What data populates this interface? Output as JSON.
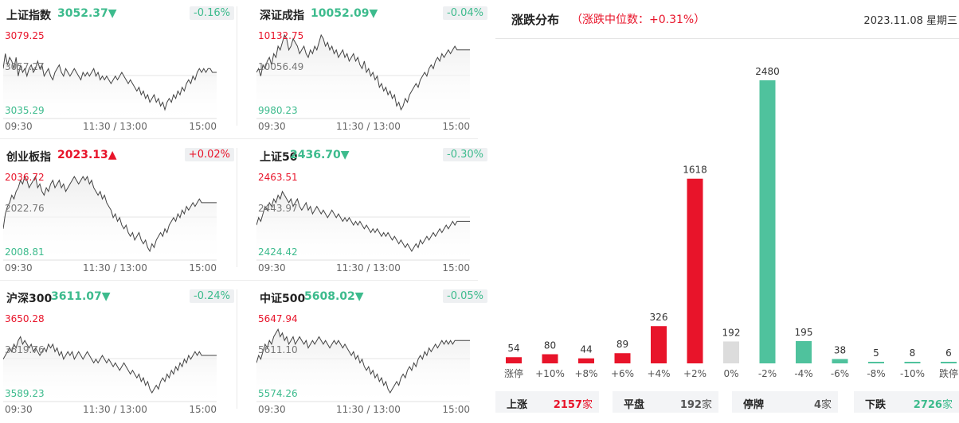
{
  "panels": [
    {
      "name": "上证指数",
      "value": "3052.37",
      "arrow": "▼",
      "dir": "down",
      "change": "-0.16%",
      "top": "3079.25",
      "mid": "3057.27",
      "bottom": "3035.29",
      "series": [
        0.45,
        0.25,
        0.4,
        0.3,
        0.35,
        0.45,
        0.3,
        0.55,
        0.4,
        0.5,
        0.45,
        0.55,
        0.45,
        0.4,
        0.5,
        0.45,
        0.35,
        0.45,
        0.4,
        0.55,
        0.5,
        0.45,
        0.55,
        0.6,
        0.5,
        0.45,
        0.4,
        0.5,
        0.55,
        0.45,
        0.5,
        0.55,
        0.5,
        0.45,
        0.5,
        0.55,
        0.6,
        0.5,
        0.55,
        0.5,
        0.55,
        0.5,
        0.45,
        0.55,
        0.5,
        0.6,
        0.55,
        0.6,
        0.55,
        0.6,
        0.65,
        0.6,
        0.55,
        0.6,
        0.55,
        0.5,
        0.55,
        0.6,
        0.65,
        0.6,
        0.65,
        0.7,
        0.75,
        0.7,
        0.8,
        0.75,
        0.85,
        0.8,
        0.9,
        0.85,
        0.8,
        0.9,
        0.85,
        0.95,
        0.9,
        1.0,
        0.9,
        0.85,
        0.9,
        0.8,
        0.85,
        0.75,
        0.8,
        0.7,
        0.75,
        0.65,
        0.6,
        0.65,
        0.55,
        0.6,
        0.5,
        0.45,
        0.5,
        0.45,
        0.5,
        0.45,
        0.45,
        0.5,
        0.5,
        0.5
      ]
    },
    {
      "name": "深证成指",
      "value": "10052.09",
      "arrow": "▼",
      "dir": "down",
      "change": "-0.04%",
      "top": "10132.75",
      "mid": "10056.49",
      "bottom": "9980.23",
      "series": [
        0.5,
        0.45,
        0.55,
        0.4,
        0.45,
        0.35,
        0.3,
        0.4,
        0.25,
        0.3,
        0.15,
        0.2,
        0.1,
        0.0,
        0.05,
        0.2,
        0.15,
        0.05,
        0.1,
        0.15,
        0.25,
        0.2,
        0.15,
        0.25,
        0.3,
        0.2,
        0.25,
        0.15,
        0.2,
        0.1,
        0.0,
        0.05,
        0.15,
        0.1,
        0.2,
        0.15,
        0.25,
        0.2,
        0.3,
        0.25,
        0.2,
        0.3,
        0.25,
        0.35,
        0.3,
        0.25,
        0.35,
        0.3,
        0.4,
        0.45,
        0.35,
        0.5,
        0.45,
        0.55,
        0.5,
        0.6,
        0.55,
        0.7,
        0.65,
        0.75,
        0.7,
        0.8,
        0.75,
        0.85,
        0.8,
        0.95,
        0.9,
        1.0,
        0.95,
        0.85,
        0.9,
        0.8,
        0.75,
        0.7,
        0.65,
        0.7,
        0.6,
        0.55,
        0.5,
        0.55,
        0.45,
        0.4,
        0.45,
        0.35,
        0.3,
        0.35,
        0.25,
        0.3,
        0.25,
        0.2,
        0.25,
        0.2,
        0.15,
        0.2,
        0.2,
        0.2,
        0.2,
        0.2,
        0.2,
        0.2
      ]
    },
    {
      "name": "创业板指",
      "value": "2023.13",
      "arrow": "▲",
      "dir": "up",
      "change": "+0.02%",
      "top": "2036.72",
      "mid": "2022.76",
      "bottom": "2008.81",
      "series": [
        0.7,
        0.5,
        0.4,
        0.35,
        0.25,
        0.3,
        0.2,
        0.15,
        0.05,
        0.1,
        0.0,
        0.05,
        0.15,
        0.1,
        0.05,
        0.0,
        0.15,
        0.1,
        0.2,
        0.25,
        0.15,
        0.2,
        0.1,
        0.05,
        0.15,
        0.1,
        0.05,
        0.15,
        0.1,
        0.2,
        0.15,
        0.1,
        0.05,
        0.0,
        0.05,
        0.1,
        0.05,
        0.0,
        0.05,
        0.0,
        0.1,
        0.05,
        0.15,
        0.2,
        0.25,
        0.2,
        0.3,
        0.25,
        0.35,
        0.4,
        0.45,
        0.55,
        0.5,
        0.6,
        0.55,
        0.65,
        0.7,
        0.65,
        0.75,
        0.8,
        0.75,
        0.85,
        0.8,
        0.75,
        0.85,
        0.9,
        0.85,
        0.95,
        1.0,
        0.9,
        0.95,
        0.85,
        0.8,
        0.75,
        0.8,
        0.7,
        0.75,
        0.65,
        0.6,
        0.55,
        0.6,
        0.5,
        0.55,
        0.45,
        0.5,
        0.4,
        0.45,
        0.4,
        0.35,
        0.4,
        0.35,
        0.3,
        0.35,
        0.35,
        0.35,
        0.35,
        0.35,
        0.35,
        0.35,
        0.35
      ]
    },
    {
      "name": "上证50",
      "value": "2436.70",
      "arrow": "▼",
      "dir": "down",
      "change": "-0.30%",
      "top": "2463.51",
      "mid": "2443.97",
      "bottom": "2424.42",
      "series": [
        0.65,
        0.55,
        0.6,
        0.5,
        0.4,
        0.45,
        0.35,
        0.4,
        0.3,
        0.35,
        0.25,
        0.3,
        0.2,
        0.25,
        0.3,
        0.35,
        0.3,
        0.4,
        0.35,
        0.3,
        0.4,
        0.45,
        0.4,
        0.35,
        0.45,
        0.4,
        0.5,
        0.45,
        0.4,
        0.45,
        0.5,
        0.45,
        0.5,
        0.55,
        0.5,
        0.45,
        0.5,
        0.55,
        0.5,
        0.55,
        0.6,
        0.55,
        0.6,
        0.55,
        0.6,
        0.65,
        0.6,
        0.65,
        0.6,
        0.65,
        0.7,
        0.65,
        0.7,
        0.75,
        0.7,
        0.75,
        0.7,
        0.75,
        0.8,
        0.75,
        0.8,
        0.75,
        0.8,
        0.85,
        0.8,
        0.85,
        0.9,
        0.85,
        0.9,
        0.95,
        0.9,
        0.95,
        1.0,
        0.95,
        0.9,
        0.95,
        0.85,
        0.9,
        0.85,
        0.8,
        0.85,
        0.8,
        0.75,
        0.8,
        0.75,
        0.7,
        0.75,
        0.7,
        0.65,
        0.7,
        0.65,
        0.6,
        0.65,
        0.6,
        0.6,
        0.6,
        0.6,
        0.6,
        0.6,
        0.6
      ]
    },
    {
      "name": "沪深300",
      "value": "3611.07",
      "arrow": "▼",
      "dir": "down",
      "change": "-0.24%",
      "top": "3650.28",
      "mid": "3619.76",
      "bottom": "3589.23",
      "series": [
        0.55,
        0.5,
        0.45,
        0.4,
        0.45,
        0.35,
        0.4,
        0.3,
        0.25,
        0.35,
        0.3,
        0.35,
        0.4,
        0.35,
        0.45,
        0.4,
        0.45,
        0.5,
        0.45,
        0.4,
        0.45,
        0.35,
        0.4,
        0.35,
        0.45,
        0.4,
        0.5,
        0.45,
        0.55,
        0.5,
        0.45,
        0.5,
        0.45,
        0.55,
        0.5,
        0.45,
        0.5,
        0.55,
        0.5,
        0.45,
        0.5,
        0.55,
        0.6,
        0.55,
        0.6,
        0.55,
        0.5,
        0.55,
        0.6,
        0.55,
        0.6,
        0.65,
        0.6,
        0.65,
        0.7,
        0.65,
        0.6,
        0.65,
        0.7,
        0.75,
        0.7,
        0.75,
        0.8,
        0.75,
        0.85,
        0.8,
        0.9,
        0.85,
        0.95,
        1.0,
        0.95,
        0.9,
        0.95,
        0.85,
        0.8,
        0.85,
        0.75,
        0.8,
        0.7,
        0.75,
        0.65,
        0.7,
        0.6,
        0.65,
        0.55,
        0.6,
        0.5,
        0.55,
        0.5,
        0.45,
        0.5,
        0.45,
        0.5,
        0.5,
        0.5,
        0.5,
        0.5,
        0.5,
        0.5,
        0.5
      ]
    },
    {
      "name": "中证500",
      "value": "5608.02",
      "arrow": "▼",
      "dir": "down",
      "change": "-0.05%",
      "top": "5647.94",
      "mid": "5611.10",
      "bottom": "5574.26",
      "series": [
        0.6,
        0.5,
        0.55,
        0.45,
        0.35,
        0.4,
        0.3,
        0.35,
        0.25,
        0.2,
        0.15,
        0.25,
        0.2,
        0.3,
        0.25,
        0.35,
        0.3,
        0.25,
        0.35,
        0.3,
        0.25,
        0.3,
        0.35,
        0.3,
        0.4,
        0.35,
        0.3,
        0.35,
        0.3,
        0.25,
        0.3,
        0.35,
        0.3,
        0.35,
        0.4,
        0.35,
        0.3,
        0.35,
        0.3,
        0.35,
        0.4,
        0.35,
        0.4,
        0.45,
        0.5,
        0.45,
        0.55,
        0.5,
        0.6,
        0.55,
        0.65,
        0.7,
        0.65,
        0.75,
        0.7,
        0.8,
        0.75,
        0.85,
        0.8,
        0.9,
        0.85,
        0.95,
        1.0,
        0.95,
        0.9,
        0.85,
        0.9,
        0.8,
        0.75,
        0.8,
        0.7,
        0.65,
        0.7,
        0.6,
        0.65,
        0.55,
        0.5,
        0.55,
        0.45,
        0.5,
        0.4,
        0.45,
        0.4,
        0.35,
        0.4,
        0.35,
        0.3,
        0.35,
        0.3,
        0.35,
        0.3,
        0.35,
        0.3,
        0.3,
        0.3,
        0.3,
        0.3,
        0.3,
        0.3,
        0.3
      ]
    }
  ],
  "time_labels": [
    "09:30",
    "11:30 / 13:00",
    "15:00"
  ],
  "right": {
    "title": "涨跌分布",
    "subtitle": "（涨跌中位数：+0.31%）",
    "date": "2023.11.08 星期三"
  },
  "chart_data": {
    "type": "bar",
    "categories": [
      "涨停",
      "+10%",
      "+8%",
      "+6%",
      "+4%",
      "+2%",
      "0%",
      "-2%",
      "-4%",
      "-6%",
      "-8%",
      "-10%",
      "跌停"
    ],
    "values": [
      54,
      80,
      44,
      89,
      326,
      1618,
      192,
      2480,
      195,
      38,
      5,
      8,
      6
    ],
    "title": "",
    "xlabel": "",
    "ylabel": "",
    "ylim": [
      0,
      2480
    ]
  },
  "bar_colors": [
    "#e8142a",
    "#e8142a",
    "#e8142a",
    "#e8142a",
    "#e8142a",
    "#e8142a",
    "#dcdcdc",
    "#4fc29d",
    "#4fc29d",
    "#4fc29d",
    "#4fc29d",
    "#4fc29d",
    "#4fc29d"
  ],
  "stats": [
    {
      "label": "上涨",
      "value": "2157",
      "unit": "家",
      "dir": "up"
    },
    {
      "label": "平盘",
      "value": "192",
      "unit": "家",
      "dir": "gray"
    },
    {
      "label": "停牌",
      "value": "4",
      "unit": "家",
      "dir": "gray"
    },
    {
      "label": "下跌",
      "value": "2726",
      "unit": "家",
      "dir": "down"
    }
  ],
  "colors": {
    "up": "#e8142a",
    "down": "#3dbb8d",
    "flat": "#dcdcdc"
  }
}
